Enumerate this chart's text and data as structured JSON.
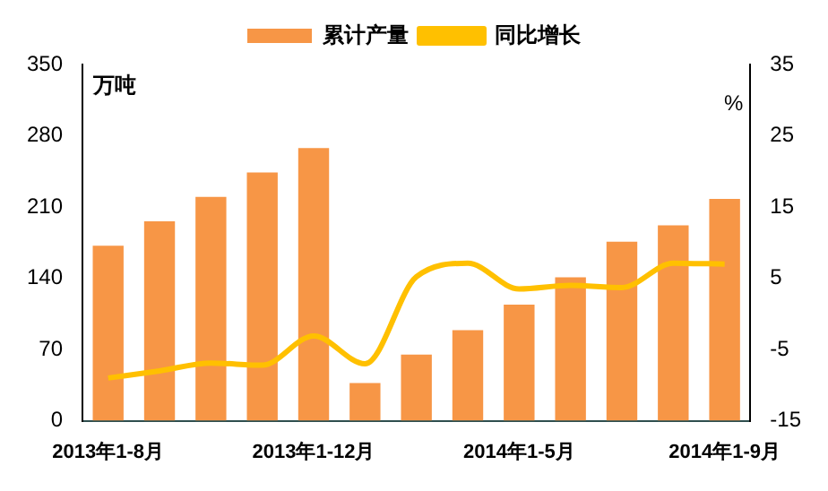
{
  "chart_data": {
    "type": "bar",
    "ylabel": "万吨",
    "y2label": "%",
    "categories": [
      "2013年1-8月",
      null,
      null,
      null,
      "2013年1-12月",
      null,
      null,
      null,
      "2014年1-5月",
      null,
      null,
      null,
      "2014年1-9月"
    ],
    "series": [
      {
        "name": "累计产量",
        "color": "#f79646",
        "values": [
          172,
          196,
          220,
          244,
          268,
          37,
          65,
          89,
          114,
          141,
          176,
          192,
          218
        ]
      },
      {
        "name": "同比增长",
        "type": "line",
        "axis": "y2",
        "color": "#ffc000",
        "values": [
          -9.0,
          -8.0,
          -6.9,
          -7.2,
          -3.1,
          -7.0,
          5.2,
          7.1,
          3.5,
          4.0,
          3.7,
          7.1,
          7.0
        ]
      }
    ],
    "ylim": [
      0,
      350
    ],
    "yticks": [
      0,
      70,
      140,
      210,
      280,
      350
    ],
    "y2lim": [
      -15,
      35
    ],
    "y2ticks": [
      -15,
      -5,
      5,
      15,
      25,
      35
    ],
    "grid": false,
    "legend": "top",
    "marker": "none",
    "line_style": "solid"
  }
}
